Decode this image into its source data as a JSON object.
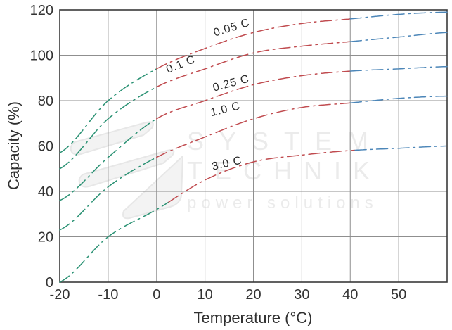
{
  "chart_data": {
    "type": "line",
    "title": "",
    "xlabel": "Temperature (°C)",
    "ylabel": "Capacity (%)",
    "xlim": [
      -20,
      60
    ],
    "ylim": [
      0,
      120
    ],
    "x_ticks": [
      -20,
      -10,
      0,
      10,
      20,
      30,
      40,
      50
    ],
    "y_ticks": [
      0,
      20,
      40,
      60,
      80,
      100,
      120
    ],
    "grid": true,
    "legend_position": "inline-curve-labels",
    "line_style": "dash-dot",
    "x": [
      -20,
      -10,
      0,
      10,
      20,
      30,
      40,
      50,
      60
    ],
    "series": [
      {
        "name": "0.05 C",
        "values": [
          57,
          80,
          94,
          103,
          110,
          114,
          116,
          118,
          119
        ],
        "color_breaks": [
          0,
          40
        ]
      },
      {
        "name": "0.1 C",
        "values": [
          50,
          72,
          86,
          94,
          101,
          104,
          106,
          108,
          110
        ],
        "color_breaks": [
          0,
          40
        ]
      },
      {
        "name": "0.25 C",
        "values": [
          36,
          55,
          72,
          80,
          87,
          91,
          93,
          94,
          95
        ],
        "color_breaks": [
          0,
          40
        ]
      },
      {
        "name": "1.0 C",
        "values": [
          23,
          42,
          55,
          64,
          72,
          77,
          79,
          81,
          82
        ],
        "color_breaks": [
          0,
          40
        ]
      },
      {
        "name": "3.0 C",
        "values": [
          0,
          20,
          32,
          45,
          53,
          56,
          58,
          59,
          60
        ],
        "color_breaks": [
          2.5,
          41
        ]
      }
    ],
    "segment_colors": {
      "cold": "#2B9274",
      "mid": "#C04B4F",
      "hot": "#4C86B8"
    }
  },
  "watermark": {
    "line1": "SYSTEM",
    "line2": "TECHNIK",
    "line3": "power solutions"
  }
}
